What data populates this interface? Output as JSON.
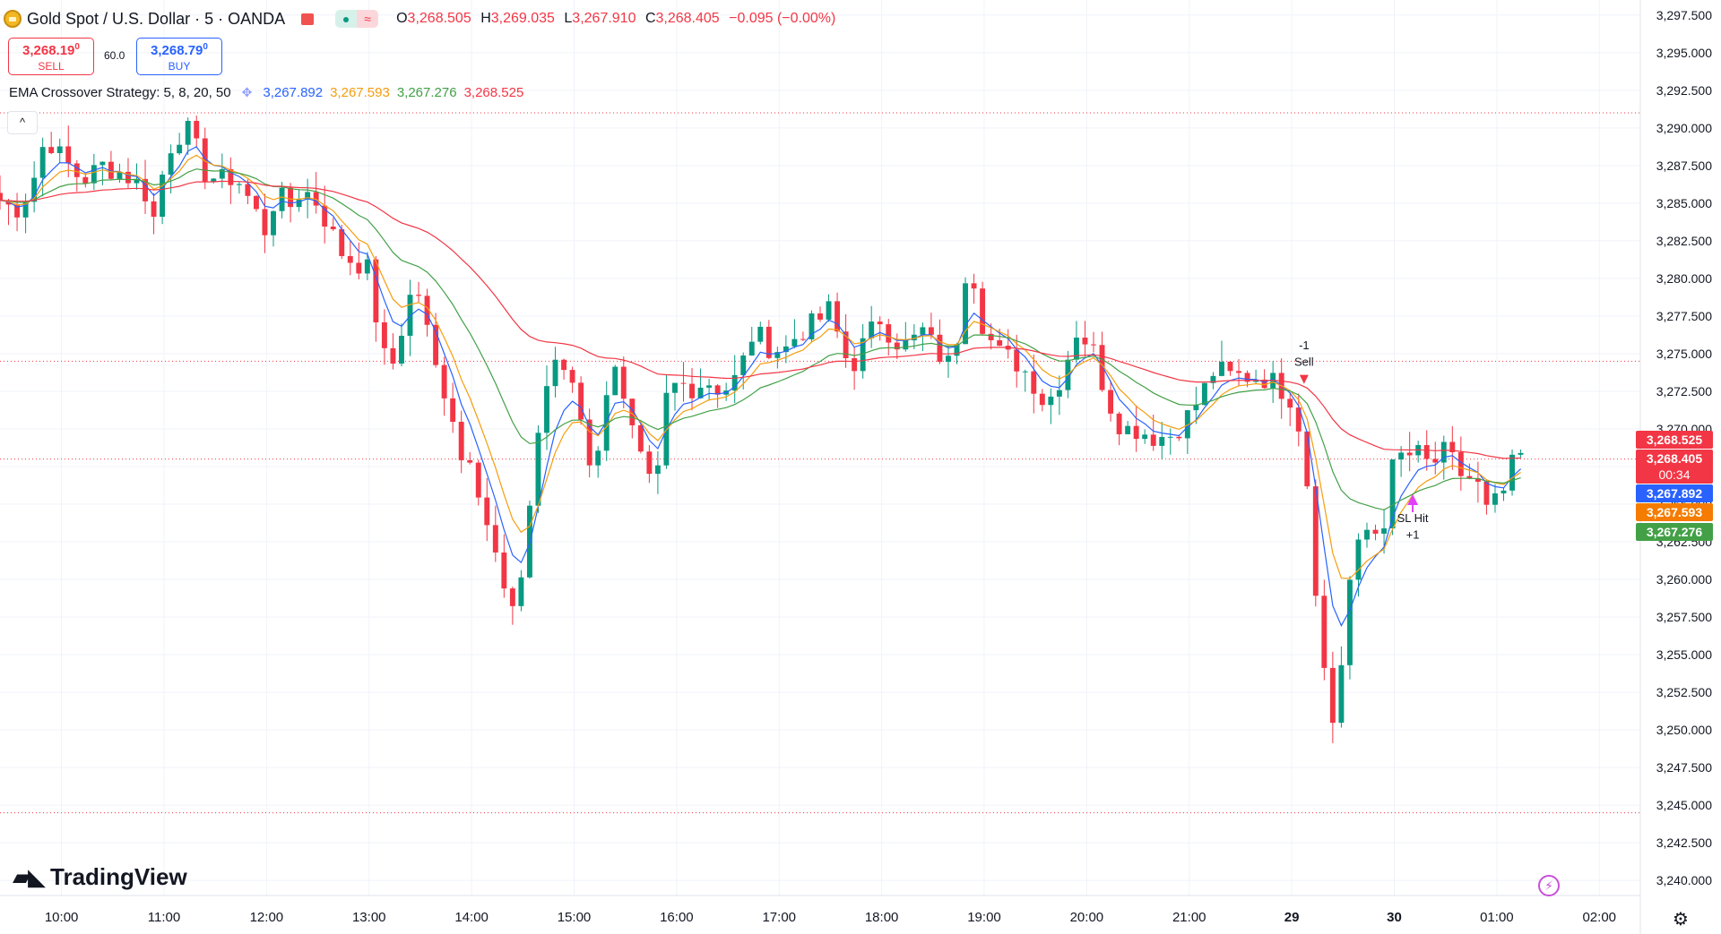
{
  "header": {
    "symbol": "Gold Spot / U.S. Dollar · 5 · OANDA",
    "toggle_left": "●",
    "toggle_right": "≈",
    "ohlc": {
      "o": "3,268.505",
      "h": "3,269.035",
      "l": "3,267.910",
      "c": "3,268.405",
      "change": "−0.095 (−0.00%)"
    },
    "ohlc_prefix": {
      "o": "O",
      "h": "H",
      "l": "L",
      "c": "C"
    }
  },
  "trade": {
    "sell_price": "3,268.19",
    "sell_price_sup": "0",
    "sell_label": "SELL",
    "spread": "60.0",
    "buy_price": "3,268.79",
    "buy_price_sup": "0",
    "buy_label": "BUY"
  },
  "indicator": {
    "name": "EMA Crossover Strategy: 5, 8, 20, 50",
    "values": [
      "3,267.892",
      "3,267.593",
      "3,267.276",
      "3,268.525"
    ],
    "colors": [
      "#2962ff",
      "#f59d0d",
      "#43a047",
      "#f23645"
    ],
    "collapse": "^"
  },
  "brand": {
    "name": "TradingView"
  },
  "price_labels": {
    "ema50": "3,268.525",
    "last": "3,268.405",
    "countdown": "00:34",
    "ema5": "3,267.892",
    "ema8": "3,267.593",
    "ema20": "3,267.276"
  },
  "chart_data": {
    "type": "candlestick",
    "y_axis": {
      "range": [
        3239.0,
        3298.5
      ],
      "ticks": [
        3240,
        3242.5,
        3245,
        3247.5,
        3250,
        3252.5,
        3255,
        3257.5,
        3260,
        3262.5,
        3265,
        3267.5,
        3270,
        3272.5,
        3275,
        3277.5,
        3280,
        3282.5,
        3285,
        3287.5,
        3290,
        3292.5,
        3295,
        3297.5
      ],
      "tick_labels": [
        "3,240.000",
        "3,242.500",
        "3,245.000",
        "3,247.500",
        "3,250.000",
        "3,252.500",
        "3,255.000",
        "3,257.500",
        "3,260.000",
        "3,262.500",
        "3,265.000",
        "3,267.500",
        "3,270.000",
        "3,272.500",
        "3,275.000",
        "3,277.500",
        "3,280.000",
        "3,282.500",
        "3,285.000",
        "3,287.500",
        "3,290.000",
        "3,292.500",
        "3,295.000",
        "3,297.500"
      ]
    },
    "x_axis": {
      "ticks": [
        {
          "t": 10,
          "label": "10:00"
        },
        {
          "t": 11,
          "label": "11:00"
        },
        {
          "t": 12,
          "label": "12:00"
        },
        {
          "t": 13,
          "label": "13:00"
        },
        {
          "t": 14,
          "label": "14:00"
        },
        {
          "t": 15,
          "label": "15:00"
        },
        {
          "t": 16,
          "label": "16:00"
        },
        {
          "t": 17,
          "label": "17:00"
        },
        {
          "t": 18,
          "label": "18:00"
        },
        {
          "t": 19,
          "label": "19:00"
        },
        {
          "t": 20,
          "label": "20:00"
        },
        {
          "t": 21,
          "label": "21:00"
        },
        {
          "t": 22,
          "label": "29"
        },
        {
          "t": 23,
          "label": "30"
        },
        {
          "t": 24,
          "label": "01:00"
        },
        {
          "t": 25,
          "label": "02:00"
        }
      ],
      "range": [
        9.4,
        25.4
      ]
    },
    "candle_interval_hours": 0.0833333,
    "anchors": [
      [
        9.4,
        3285.2
      ],
      [
        9.55,
        3284.5
      ],
      [
        9.7,
        3286.0
      ],
      [
        9.85,
        3289.5
      ],
      [
        10.0,
        3288.0
      ],
      [
        10.2,
        3286.5
      ],
      [
        10.4,
        3287.5
      ],
      [
        10.6,
        3287.0
      ],
      [
        10.8,
        3286.0
      ],
      [
        10.9,
        3284.0
      ],
      [
        11.0,
        3287.5
      ],
      [
        11.1,
        3289.5
      ],
      [
        11.25,
        3289.8
      ],
      [
        11.4,
        3287.0
      ],
      [
        11.55,
        3286.5
      ],
      [
        11.7,
        3286.8
      ],
      [
        11.85,
        3285.0
      ],
      [
        12.0,
        3283.0
      ],
      [
        12.1,
        3286.0
      ],
      [
        12.2,
        3284.5
      ],
      [
        12.35,
        3286.0
      ],
      [
        12.5,
        3285.0
      ],
      [
        12.6,
        3283.5
      ],
      [
        12.75,
        3281.5
      ],
      [
        12.9,
        3281.0
      ],
      [
        13.0,
        3280.5
      ],
      [
        13.1,
        3276.0
      ],
      [
        13.2,
        3273.5
      ],
      [
        13.35,
        3277.5
      ],
      [
        13.45,
        3280.0
      ],
      [
        13.55,
        3277.0
      ],
      [
        13.65,
        3274.0
      ],
      [
        13.8,
        3271.5
      ],
      [
        13.9,
        3268.0
      ],
      [
        14.0,
        3268.5
      ],
      [
        14.1,
        3265.0
      ],
      [
        14.2,
        3262.5
      ],
      [
        14.3,
        3259.5
      ],
      [
        14.4,
        3257.5
      ],
      [
        14.5,
        3261.0
      ],
      [
        14.6,
        3267.0
      ],
      [
        14.7,
        3272.5
      ],
      [
        14.85,
        3274.5
      ],
      [
        15.0,
        3273.0
      ],
      [
        15.1,
        3270.0
      ],
      [
        15.2,
        3266.0
      ],
      [
        15.3,
        3272.5
      ],
      [
        15.4,
        3274.5
      ],
      [
        15.5,
        3271.0
      ],
      [
        15.6,
        3269.0
      ],
      [
        15.7,
        3266.5
      ],
      [
        15.8,
        3266.0
      ],
      [
        15.9,
        3272.0
      ],
      [
        16.0,
        3273.0
      ],
      [
        16.15,
        3272.8
      ],
      [
        16.3,
        3273.2
      ],
      [
        16.45,
        3272.5
      ],
      [
        16.6,
        3273.5
      ],
      [
        16.75,
        3276.5
      ],
      [
        16.9,
        3275.5
      ],
      [
        17.05,
        3275.2
      ],
      [
        17.2,
        3276.5
      ],
      [
        17.35,
        3277.0
      ],
      [
        17.5,
        3278.0
      ],
      [
        17.6,
        3275.5
      ],
      [
        17.7,
        3274.0
      ],
      [
        17.85,
        3276.0
      ],
      [
        18.0,
        3277.5
      ],
      [
        18.1,
        3276.0
      ],
      [
        18.25,
        3275.5
      ],
      [
        18.4,
        3276.5
      ],
      [
        18.55,
        3275.0
      ],
      [
        18.7,
        3274.0
      ],
      [
        18.8,
        3280.5
      ],
      [
        18.9,
        3280.0
      ],
      [
        19.0,
        3276.5
      ],
      [
        19.15,
        3275.0
      ],
      [
        19.3,
        3274.5
      ],
      [
        19.45,
        3273.5
      ],
      [
        19.6,
        3271.5
      ],
      [
        19.75,
        3273.5
      ],
      [
        19.9,
        3276.5
      ],
      [
        20.05,
        3275.5
      ],
      [
        20.2,
        3272.0
      ],
      [
        20.35,
        3270.0
      ],
      [
        20.5,
        3270.0
      ],
      [
        20.65,
        3269.5
      ],
      [
        20.8,
        3269.5
      ],
      [
        20.95,
        3270.5
      ],
      [
        21.1,
        3272.0
      ],
      [
        21.25,
        3274.0
      ],
      [
        21.4,
        3273.5
      ],
      [
        21.55,
        3273.5
      ],
      [
        21.7,
        3273.5
      ],
      [
        21.85,
        3273.0
      ],
      [
        22.0,
        3272.0
      ],
      [
        22.1,
        3269.5
      ],
      [
        22.15,
        3266.5
      ],
      [
        22.2,
        3262.0
      ],
      [
        22.3,
        3255.0
      ],
      [
        22.38,
        3250.0
      ],
      [
        22.45,
        3252.0
      ],
      [
        22.55,
        3259.5
      ],
      [
        22.65,
        3262.0
      ],
      [
        22.75,
        3263.5
      ],
      [
        22.85,
        3263.0
      ],
      [
        22.95,
        3265.0
      ],
      [
        23.0,
        3268.5
      ],
      [
        23.1,
        3268.0
      ],
      [
        23.2,
        3268.5
      ],
      [
        23.35,
        3267.5
      ],
      [
        23.5,
        3268.5
      ],
      [
        23.65,
        3267.0
      ],
      [
        23.8,
        3266.5
      ],
      [
        23.9,
        3264.5
      ],
      [
        24.05,
        3265.5
      ],
      [
        24.15,
        3267.5
      ],
      [
        24.25,
        3268.4
      ]
    ],
    "series": [
      {
        "name": "EMA 5",
        "period": 5,
        "color": "#2962ff"
      },
      {
        "name": "EMA 8",
        "period": 8,
        "color": "#f59d0d"
      },
      {
        "name": "EMA 20",
        "period": 20,
        "color": "#43a047"
      },
      {
        "name": "EMA 50",
        "period": 50,
        "color": "#f23645"
      }
    ],
    "up_color": "#089981",
    "down_color": "#f23645",
    "horizontal_lines": [
      3291.0,
      3274.5,
      3268.0,
      3244.5
    ],
    "annotations": [
      {
        "t": 22.12,
        "price": 3275.3,
        "text": "-1"
      },
      {
        "t": 22.12,
        "price": 3274.2,
        "text": "Sell"
      },
      {
        "t": 23.18,
        "price": 3263.8,
        "text": "SL Hit"
      },
      {
        "t": 23.18,
        "price": 3262.7,
        "text": "+1"
      }
    ],
    "markers": [
      {
        "t": 22.12,
        "price": 3273.0,
        "kind": "arrow-down",
        "color": "#f23645"
      },
      {
        "t": 23.18,
        "price": 3265.3,
        "kind": "arrow-up",
        "color": "#e040fb"
      }
    ]
  }
}
